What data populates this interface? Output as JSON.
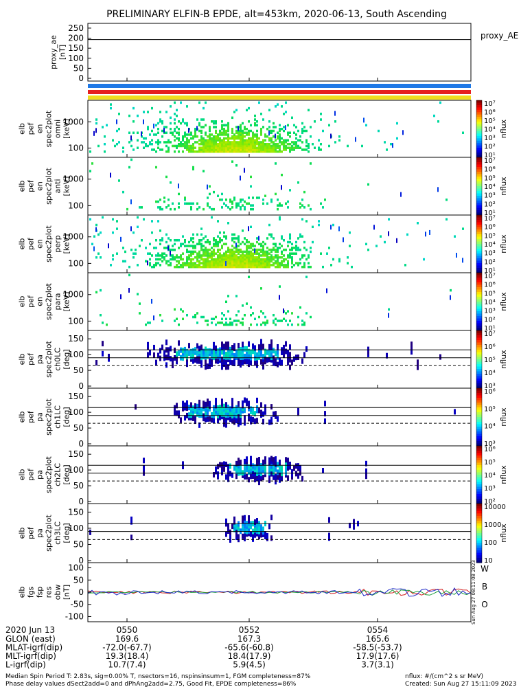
{
  "title": "PRELIMINARY ELFIN-B EPDE, alt=453km, 2020-06-13, South Ascending",
  "chart_data": {
    "type": "heatmap",
    "date_label": "2020 Jun 13",
    "time_ticks": [
      "0550",
      "0552",
      "0554"
    ],
    "orbit_rows": [
      {
        "label": "GLON (east)",
        "values": [
          "169.6",
          "167.3",
          "165.6"
        ]
      },
      {
        "label": "MLAT-igrf(dip)",
        "values": [
          "-72.0(-67.7)",
          "-65.6(-60.8)",
          "-58.5(-53.7)"
        ]
      },
      {
        "label": "MLT-igrf(dip)",
        "values": [
          "19.3(18.4)",
          "18.4(17.9)",
          "17.9(17.6)"
        ]
      },
      {
        "label": "L-igrf(dip)",
        "values": [
          "10.7(7.4)",
          "5.9(4.5)",
          "3.7(3.1)"
        ]
      }
    ],
    "panels": [
      {
        "ylabel": [
          "proxy_ae",
          "[nT]"
        ],
        "yticks": [
          "250",
          "200",
          "150",
          "100",
          "50",
          "0"
        ],
        "legend": "proxy_AE",
        "ylim": [
          0,
          260
        ],
        "line_value": 193
      },
      {
        "ylabel": [
          "elb",
          "pef",
          "en",
          "spec2plot",
          "omni",
          "[keV]"
        ],
        "yticks": [
          "1000",
          "100"
        ],
        "cbar_ticks": [
          "10⁷",
          "10⁶",
          "10⁵",
          "10⁴",
          "10³",
          "10²",
          "10¹"
        ],
        "cbar_label": "nflux"
      },
      {
        "ylabel": [
          "elb",
          "pef",
          "en",
          "spec2plot",
          "anti",
          "[keV]"
        ],
        "yticks": [
          "1000",
          "100"
        ],
        "cbar_ticks": [
          "10⁷",
          "10⁶",
          "10⁵",
          "10⁴",
          "10³",
          "10²",
          "10¹"
        ],
        "cbar_label": "nflux"
      },
      {
        "ylabel": [
          "elb",
          "pef",
          "en",
          "spec2plot",
          "perp",
          "[keV]"
        ],
        "yticks": [
          "1000",
          "100"
        ],
        "cbar_ticks": [
          "10⁷",
          "10⁶",
          "10⁵",
          "10⁴",
          "10³",
          "10²",
          "10¹"
        ],
        "cbar_label": "nflux"
      },
      {
        "ylabel": [
          "elb",
          "pef",
          "en",
          "spec2plot",
          "para",
          "[keV]"
        ],
        "yticks": [
          "1000",
          "100"
        ],
        "cbar_ticks": [
          "10⁷",
          "10⁶",
          "10⁵",
          "10⁴",
          "10³",
          "10²",
          "10¹"
        ],
        "cbar_label": "nflux"
      },
      {
        "ylabel": [
          "elb",
          "pef",
          "pa",
          "spec2plot",
          "ch0LC",
          "[deg]"
        ],
        "yticks": [
          "150",
          "100",
          "50",
          "0"
        ],
        "cbar_ticks": [
          "10⁷",
          "10⁶",
          "10⁵",
          "10⁴",
          "10³"
        ],
        "cbar_label": "nflux"
      },
      {
        "ylabel": [
          "elb",
          "pef",
          "pa",
          "spec2plot",
          "ch1LC",
          "[deg]"
        ],
        "yticks": [
          "150",
          "100",
          "50",
          "0"
        ],
        "cbar_ticks": [
          "10⁶",
          "10⁵",
          "10⁴",
          "10³"
        ],
        "cbar_label": "nflux"
      },
      {
        "ylabel": [
          "elb",
          "pef",
          "pa",
          "spec2plot",
          "ch2LC",
          "[deg]"
        ],
        "yticks": [
          "150",
          "100",
          "50",
          "0"
        ],
        "cbar_ticks": [
          "10⁶",
          "10⁵",
          "10⁴",
          "10³",
          "10²"
        ],
        "cbar_label": "nflux"
      },
      {
        "ylabel": [
          "elb",
          "pef",
          "pa",
          "spec2plot",
          "ch3LC",
          "[deg]"
        ],
        "yticks": [
          "150",
          "100",
          "50",
          "0"
        ],
        "cbar_ticks": [
          "10000",
          "1000",
          "100",
          "10"
        ],
        "cbar_label": "nflux"
      },
      {
        "ylabel": [
          "elb",
          "fgs",
          "fsp",
          "res",
          "obw",
          "[nT]"
        ],
        "yticks": [
          "100",
          "50",
          "0",
          "-50",
          "-100"
        ],
        "ylim": [
          -110,
          110
        ],
        "legend": [
          "W",
          "B",
          "O"
        ]
      }
    ],
    "side_stamp": "Sun Aug 27 08:11:08 2023",
    "footer": {
      "left1": "Median Spin Period T: 2.83s, sig=0.00% T, nsectors=16, nspinsinsum=1, FGM completeness=87%",
      "left2": "Phase delay values dSect2add=0 and dPhAng2add=2.75, Good Fit, EPDE completeness=86%",
      "right1": "nflux: #/(cm^2 s sr MeV)",
      "right2": "Created: Sun Aug 27 15:11:09 2023"
    }
  },
  "colors": {
    "bar_blue": "#1e78e6",
    "bar_red": "#e61e1e",
    "bar_yellow": "#f0dc1e",
    "line_w": "#d21e1e",
    "line_b": "#1ea03c",
    "line_o": "#1e28c8"
  }
}
